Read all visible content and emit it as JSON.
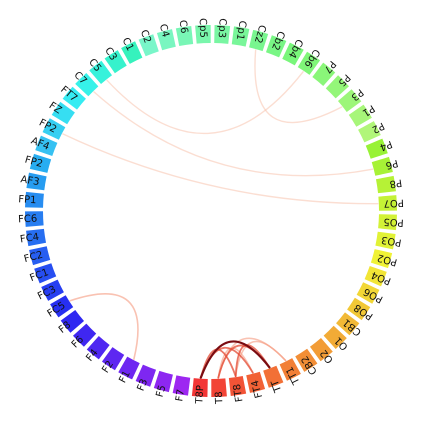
{
  "diagram": {
    "type": "chord",
    "nodes": [
      "T8P",
      "T8",
      "FT8",
      "FT4",
      "TT",
      "TT1",
      "CB2",
      "O2",
      "O1",
      "CB1",
      "PO8",
      "PO6",
      "PO4",
      "PO2",
      "PO3",
      "PO5",
      "PO7",
      "P8",
      "P6",
      "P4",
      "P2",
      "P1",
      "P3",
      "P5",
      "P7",
      "Cb6",
      "Cb4",
      "Cb2",
      "Cz2",
      "Cp1",
      "Cp3",
      "Cp5",
      "C6",
      "C4",
      "C2",
      "C1",
      "C3",
      "C5",
      "C7",
      "FT7",
      "FZ",
      "FP2",
      "AF4",
      "FP2",
      "AF3",
      "FP1",
      "FC6",
      "FC4",
      "FC2",
      "FC1",
      "FC3",
      "FC5",
      "F8",
      "F6",
      "F4",
      "F2",
      "F1",
      "F3",
      "F5",
      "F7"
    ],
    "links": [
      {
        "from": 0,
        "to": 4,
        "strength": 1.0
      },
      {
        "from": 1,
        "to": 4,
        "strength": 0.7
      },
      {
        "from": 0,
        "to": 3,
        "strength": 0.6
      },
      {
        "from": 2,
        "to": 4,
        "strength": 0.55
      },
      {
        "from": 0,
        "to": 2,
        "strength": 0.5
      },
      {
        "from": 1,
        "to": 3,
        "strength": 0.4
      },
      {
        "from": 2,
        "to": 5,
        "strength": 0.35
      },
      {
        "from": 1,
        "to": 5,
        "strength": 0.25
      },
      {
        "from": 51,
        "to": 56,
        "strength": 0.3
      },
      {
        "from": 41,
        "to": 16,
        "strength": 0.18
      },
      {
        "from": 37,
        "to": 25,
        "strength": 0.15
      },
      {
        "from": 38,
        "to": 18,
        "strength": 0.12
      },
      {
        "from": 22,
        "to": 28,
        "strength": 0.12
      }
    ]
  }
}
